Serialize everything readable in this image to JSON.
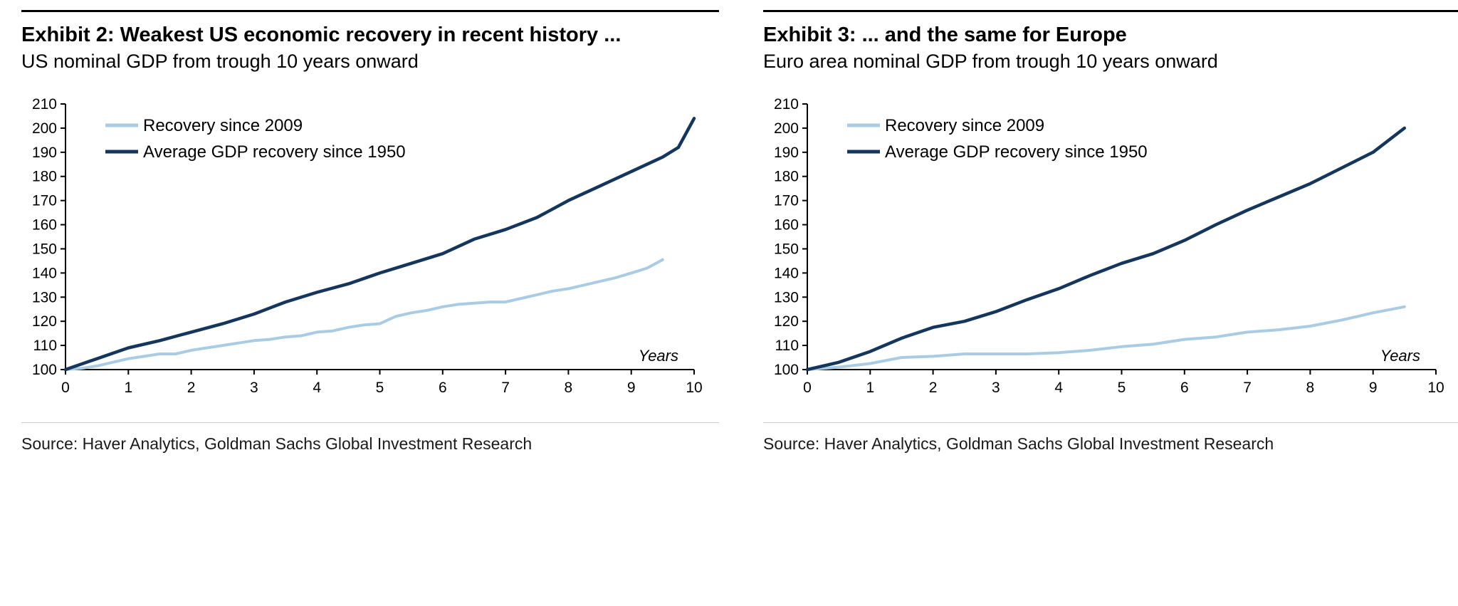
{
  "accent_colors": {
    "light_blue": "#a9cce4",
    "navy": "#15365c"
  },
  "chart_data": [
    {
      "type": "line",
      "exhibit_title": "Exhibit 2: Weakest US economic recovery in recent history ...",
      "subtitle": "US nominal GDP from trough 10 years onward",
      "source": "Source: Haver Analytics, Goldman Sachs Global Investment Research",
      "xlabel": "Years",
      "ylabel": "",
      "xlim": [
        0,
        10
      ],
      "ylim": [
        100,
        210
      ],
      "x_ticks": [
        0,
        1,
        2,
        3,
        4,
        5,
        6,
        7,
        8,
        9,
        10
      ],
      "y_ticks": [
        100,
        110,
        120,
        130,
        140,
        150,
        160,
        170,
        180,
        190,
        200,
        210
      ],
      "grid": false,
      "legend_position": "top-left-inside",
      "series": [
        {
          "name": "Recovery since 2009",
          "color": "#a9cce4",
          "x": [
            0,
            0.25,
            0.5,
            0.75,
            1,
            1.25,
            1.5,
            1.75,
            2,
            2.25,
            2.5,
            2.75,
            3,
            3.25,
            3.5,
            3.75,
            4,
            4.25,
            4.5,
            4.75,
            5,
            5.25,
            5.5,
            5.75,
            6,
            6.25,
            6.5,
            6.75,
            7,
            7.25,
            7.5,
            7.75,
            8,
            8.25,
            8.5,
            8.75,
            9,
            9.25,
            9.5
          ],
          "y": [
            100,
            100.5,
            101.5,
            103,
            104.5,
            105.5,
            106.5,
            106.5,
            108,
            109,
            110,
            111,
            112,
            112.5,
            113.5,
            114,
            115.5,
            116,
            117.5,
            118.5,
            119,
            122,
            123.5,
            124.5,
            126,
            127,
            127.5,
            128,
            128,
            129.5,
            131,
            132.5,
            133.5,
            135,
            136.5,
            138,
            140,
            142,
            145.5
          ]
        },
        {
          "name": "Average GDP recovery since 1950",
          "color": "#15365c",
          "x": [
            0,
            0.5,
            1,
            1.5,
            2,
            2.5,
            3,
            3.5,
            4,
            4.5,
            5,
            5.5,
            6,
            6.5,
            7,
            7.5,
            8,
            8.5,
            9,
            9.5,
            9.75,
            10
          ],
          "y": [
            100,
            104.5,
            109,
            112,
            115.5,
            119,
            123,
            128,
            132,
            135.5,
            140,
            144,
            148,
            154,
            158,
            163,
            170,
            176,
            182,
            188,
            192,
            204
          ]
        }
      ]
    },
    {
      "type": "line",
      "exhibit_title": "Exhibit 3: ... and the same for Europe",
      "subtitle": "Euro area nominal GDP from trough 10 years onward",
      "source": "Source: Haver Analytics, Goldman Sachs Global Investment Research",
      "xlabel": "Years",
      "ylabel": "",
      "xlim": [
        0,
        10
      ],
      "ylim": [
        100,
        210
      ],
      "x_ticks": [
        0,
        1,
        2,
        3,
        4,
        5,
        6,
        7,
        8,
        9,
        10
      ],
      "y_ticks": [
        100,
        110,
        120,
        130,
        140,
        150,
        160,
        170,
        180,
        190,
        200,
        210
      ],
      "grid": false,
      "legend_position": "top-left-inside",
      "series": [
        {
          "name": "Recovery since 2009",
          "color": "#a9cce4",
          "x": [
            0,
            0.5,
            1,
            1.5,
            2,
            2.5,
            3,
            3.5,
            4,
            4.5,
            5,
            5.5,
            6,
            6.5,
            7,
            7.5,
            8,
            8.5,
            9,
            9.5
          ],
          "y": [
            100,
            101,
            102.5,
            105,
            105.5,
            106.5,
            106.5,
            106.5,
            107,
            108,
            109.5,
            110.5,
            112.5,
            113.5,
            115.5,
            116.5,
            118,
            120.5,
            123.5,
            126
          ]
        },
        {
          "name": "Average GDP recovery since 1950",
          "color": "#15365c",
          "x": [
            0,
            0.5,
            1,
            1.5,
            2,
            2.5,
            3,
            3.5,
            4,
            4.5,
            5,
            5.5,
            6,
            6.5,
            7,
            7.5,
            8,
            8.5,
            9,
            9.5
          ],
          "y": [
            100,
            103,
            107.5,
            113,
            117.5,
            120,
            124,
            129,
            133.5,
            139,
            144,
            148,
            153.5,
            160,
            166,
            171.5,
            177,
            183.5,
            190,
            200
          ]
        }
      ]
    }
  ]
}
